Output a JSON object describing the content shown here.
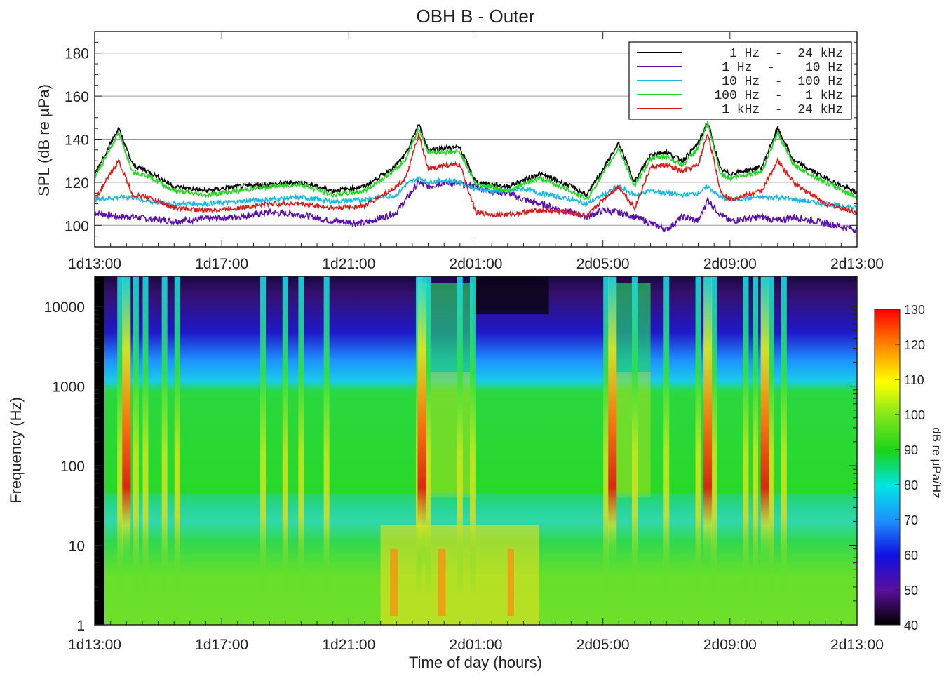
{
  "chart_data": [
    {
      "type": "line",
      "title": "OBH B - Outer",
      "xlabel": "",
      "ylabel": "SPL (dB re µPa)",
      "x_ticks": [
        "1d13:00",
        "1d17:00",
        "1d21:00",
        "2d01:00",
        "2d05:00",
        "2d09:00",
        "2d13:00"
      ],
      "xlim_hours": [
        0,
        24
      ],
      "ylim": [
        90,
        190
      ],
      "y_ticks": [
        100,
        120,
        140,
        160,
        180
      ],
      "grid": true,
      "legend_position": "top-right",
      "x_hours": [
        0,
        0.75,
        1.2,
        1.7,
        2.5,
        3.5,
        4.5,
        5.5,
        6.5,
        7.5,
        8.5,
        9.5,
        9.8,
        10.2,
        10.5,
        11,
        11.5,
        12,
        12.5,
        13,
        13.5,
        14,
        15,
        15.5,
        16,
        16.5,
        17,
        17.5,
        18,
        18.5,
        19,
        19.3,
        19.7,
        20,
        21,
        21.5,
        22,
        23,
        24
      ],
      "series": [
        {
          "name": "1 Hz  -  24 kHz",
          "color": "#000000",
          "values": [
            124,
            145,
            128,
            125,
            118,
            116,
            118,
            119,
            120,
            116,
            118,
            128,
            133,
            147,
            135,
            136,
            136,
            120,
            119,
            118,
            121,
            124,
            118,
            114,
            126,
            138,
            120,
            133,
            134,
            130,
            138,
            148,
            126,
            124,
            127,
            145,
            130,
            122,
            115
          ]
        },
        {
          "name": "1 Hz  -    10 Hz",
          "color": "#5a10b0",
          "values": [
            106,
            104,
            104,
            103,
            102,
            103,
            104,
            106,
            105,
            102,
            101,
            106,
            112,
            120,
            118,
            120,
            119,
            118,
            116,
            115,
            112,
            110,
            106,
            104,
            107,
            106,
            104,
            101,
            98,
            104,
            102,
            112,
            105,
            102,
            104,
            102,
            104,
            101,
            98
          ]
        },
        {
          "name": "10 Hz  -  100 Hz",
          "color": "#1ab8e6",
          "values": [
            112,
            113,
            113,
            111,
            110,
            110,
            111,
            112,
            113,
            111,
            112,
            114,
            119,
            122,
            120,
            121,
            120,
            117,
            116,
            116,
            117,
            115,
            112,
            110,
            114,
            118,
            114,
            116,
            115,
            114,
            115,
            118,
            113,
            112,
            113,
            113,
            112,
            110,
            108
          ]
        },
        {
          "name": "100 Hz  -   1 kHz",
          "color": "#22d822",
          "values": [
            122,
            143,
            125,
            123,
            116,
            114,
            116,
            118,
            119,
            114,
            116,
            126,
            131,
            145,
            134,
            134,
            134,
            119,
            118,
            116,
            119,
            122,
            116,
            112,
            124,
            136,
            118,
            131,
            132,
            128,
            136,
            147,
            124,
            122,
            125,
            143,
            128,
            120,
            113
          ]
        },
        {
          "name": "1 kHz  -  24 kHz",
          "color": "#e01a1a",
          "values": [
            112,
            130,
            114,
            113,
            108,
            107,
            108,
            110,
            110,
            108,
            109,
            118,
            122,
            142,
            126,
            128,
            128,
            106,
            105,
            105,
            106,
            107,
            106,
            104,
            112,
            118,
            108,
            127,
            128,
            125,
            128,
            143,
            116,
            112,
            116,
            130,
            120,
            110,
            106
          ]
        }
      ]
    },
    {
      "type": "heatmap",
      "xlabel": "Time of day (hours)",
      "ylabel": "Frequency (Hz)",
      "x_ticks": [
        "1d13:00",
        "1d17:00",
        "1d21:00",
        "2d01:00",
        "2d05:00",
        "2d09:00",
        "2d13:00"
      ],
      "xlim_hours": [
        0,
        24
      ],
      "y_scale": "log",
      "ylim": [
        1,
        24000
      ],
      "y_ticks": [
        "1",
        "10",
        "100",
        "1000",
        "10000"
      ],
      "colorbar": {
        "label": "dB re µPa/Hz",
        "range": [
          40,
          130
        ],
        "ticks": [
          "130",
          "120",
          "110",
          "100",
          "90",
          "80",
          "70",
          "60",
          "50",
          "40"
        ],
        "colormap": [
          "#000000",
          "#5a0f9e",
          "#1010e0",
          "#1e90ff",
          "#00e5e5",
          "#19d319",
          "#7ee61a",
          "#ffff00",
          "#ff8c00",
          "#ff0000"
        ]
      },
      "event_hours": [
        0.8,
        1.3,
        1.6,
        2.2,
        2.6,
        5.3,
        6.0,
        6.5,
        7.3,
        10.2,
        10.5,
        11.5,
        11.9,
        16.1,
        17.0,
        18.0,
        19.0,
        19.5,
        20.5,
        20.8,
        21.3,
        21.7
      ],
      "strong_event_hours": [
        1.0,
        10.3,
        16.3,
        19.3,
        21.1
      ]
    }
  ]
}
